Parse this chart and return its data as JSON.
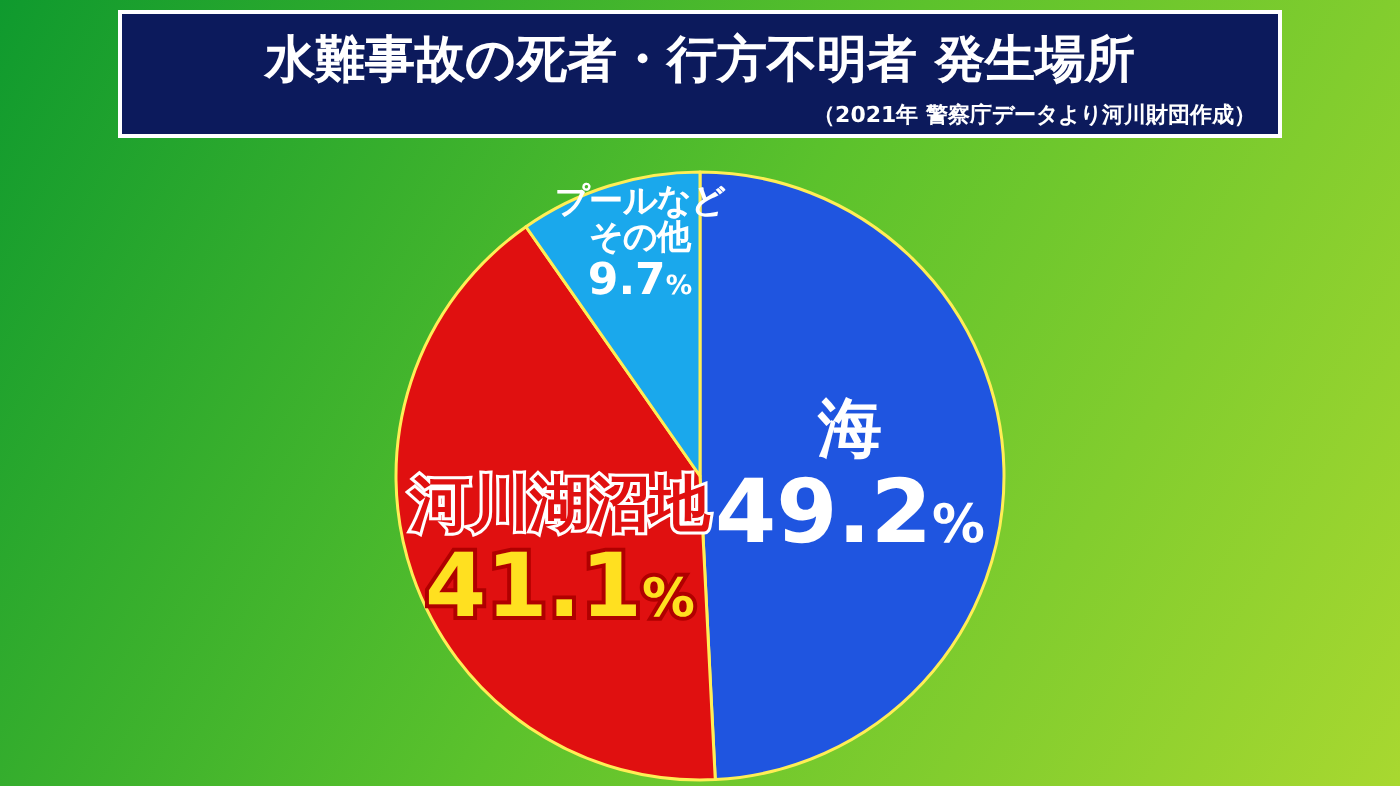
{
  "chart_data": {
    "type": "pie",
    "title": "水難事故の死者・行方不明者 発生場所",
    "subtitle": "（2021年 警察庁データより河川財団作成）",
    "categories": [
      "海",
      "河川湖沼地",
      "プールなどその他"
    ],
    "values": [
      49.2,
      41.1,
      9.7
    ],
    "value_labels": [
      "49.2%",
      "41.1%",
      "9.7%"
    ],
    "colors": [
      "#1f55e0",
      "#e01010",
      "#1aa8ec"
    ],
    "legend": false
  }
}
